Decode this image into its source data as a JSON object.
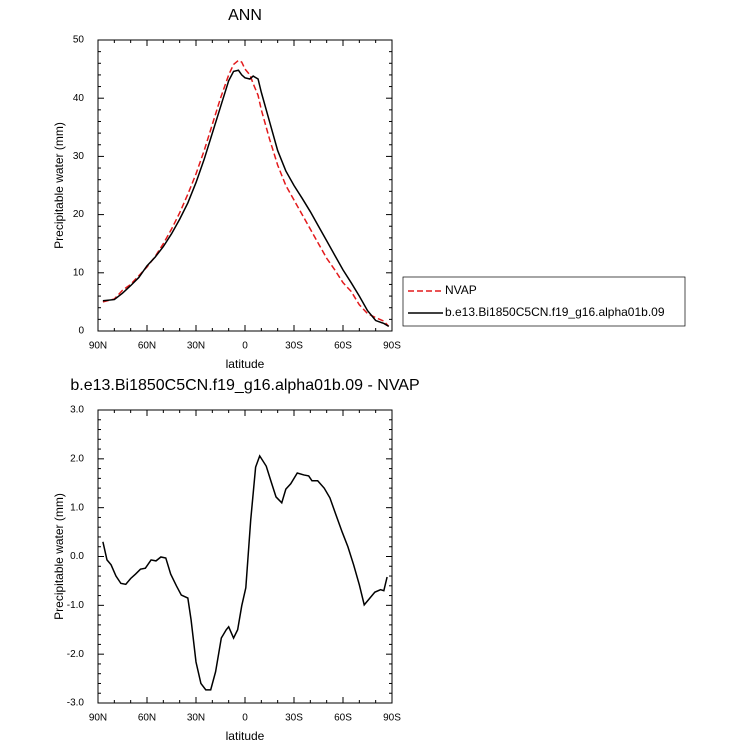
{
  "chart_data": [
    {
      "type": "line",
      "title": "ANN",
      "xlabel": "latitude",
      "ylabel": "Precipitable water (mm)",
      "x": [
        87,
        80,
        75,
        70,
        65,
        60,
        55,
        50,
        45,
        40,
        35,
        30,
        25,
        20,
        15,
        10,
        7,
        4,
        2,
        0,
        -3,
        -5,
        -8,
        -10,
        -15,
        -20,
        -25,
        -30,
        -35,
        -40,
        -45,
        -50,
        -55,
        -60,
        -65,
        -70,
        -75,
        -80,
        -85,
        -88
      ],
      "xlim": [
        90,
        -90
      ],
      "xticks": [
        {
          "value": 90,
          "label": "90N"
        },
        {
          "value": 60,
          "label": "60N"
        },
        {
          "value": 30,
          "label": "30N"
        },
        0,
        {
          "value": -30,
          "label": "30S"
        },
        {
          "value": -60,
          "label": "60S"
        },
        {
          "value": -90,
          "label": "90S"
        }
      ],
      "ylim": [
        0,
        50
      ],
      "yticks": [
        0,
        10,
        20,
        30,
        40,
        50
      ],
      "legend": "outside right",
      "series": [
        {
          "name": "NVAP",
          "color": "#e31a1c",
          "dash": true,
          "values": [
            5,
            5.5,
            7,
            8,
            9.5,
            11,
            12.8,
            15,
            17.5,
            20.3,
            23.5,
            27,
            31,
            35.5,
            40,
            44,
            45.8,
            46.5,
            46.2,
            45,
            44,
            42.5,
            40.5,
            38,
            33,
            28.5,
            25,
            22.5,
            20,
            17.5,
            15,
            12.5,
            10.5,
            8.3,
            6.8,
            4.5,
            3,
            2.3,
            1.7,
            0.8
          ]
        },
        {
          "name": "b.e13.Bi1850C5CN.f19_g16.alpha01b.09",
          "color": "#000000",
          "dash": false,
          "values": [
            5.2,
            5.4,
            6.5,
            7.8,
            9.2,
            11.2,
            12.7,
            14.5,
            16.7,
            19.2,
            22,
            25.5,
            29.5,
            34,
            38.5,
            43,
            44.6,
            44.8,
            44,
            43.5,
            43.3,
            43.8,
            43.3,
            41,
            36,
            31,
            27.5,
            25,
            22.8,
            20.5,
            18,
            15.5,
            13,
            10.5,
            8.3,
            6,
            3.5,
            1.8,
            1.3,
            0.8
          ]
        }
      ]
    },
    {
      "type": "line",
      "title": "b.e13.Bi1850C5CN.f19_g16.alpha01b.09 - NVAP",
      "xlabel": "latitude",
      "ylabel": "Precipitable water (mm)",
      "x": [
        87,
        84.5,
        82,
        79,
        76,
        73,
        70,
        67,
        64,
        61,
        57.5,
        54.5,
        51.5,
        48.5,
        45.5,
        42,
        39,
        35,
        33,
        30,
        27,
        24,
        21,
        18,
        14.5,
        11.5,
        10,
        7,
        4.5,
        2,
        -0.5,
        -3.5,
        -6.5,
        -9,
        -13,
        -16,
        -19,
        -22.5,
        -25,
        -28,
        -32,
        -36,
        -39,
        -41,
        -44.5,
        -48.5,
        -52,
        -55.5,
        -59.5,
        -63,
        -66.5,
        -70,
        -73,
        -76.5,
        -79.5,
        -83,
        -85,
        -87
      ],
      "xlim": [
        90,
        -90
      ],
      "xticks": [
        {
          "value": 90,
          "label": "90N"
        },
        {
          "value": 60,
          "label": "60N"
        },
        {
          "value": 30,
          "label": "30N"
        },
        0,
        {
          "value": -30,
          "label": "30S"
        },
        {
          "value": -60,
          "label": "60S"
        },
        {
          "value": -90,
          "label": "90S"
        }
      ],
      "ylim": [
        -3,
        3
      ],
      "yticks": [
        {
          "value": -3,
          "label": "-3.0"
        },
        {
          "value": -2,
          "label": "-2.0"
        },
        {
          "value": -1,
          "label": "-1.0"
        },
        {
          "value": 0,
          "label": "0.0"
        },
        {
          "value": 1,
          "label": "1.0"
        },
        {
          "value": 2,
          "label": "2.0"
        },
        {
          "value": 3,
          "label": "3.0"
        }
      ],
      "series": [
        {
          "color": "#000000",
          "dash": false,
          "values": [
            0.3,
            -0.07,
            -0.17,
            -0.4,
            -0.55,
            -0.57,
            -0.45,
            -0.36,
            -0.26,
            -0.24,
            -0.07,
            -0.09,
            -0.01,
            -0.03,
            -0.36,
            -0.6,
            -0.79,
            -0.85,
            -1.3,
            -2.16,
            -2.6,
            -2.73,
            -2.73,
            -2.36,
            -1.67,
            -1.5,
            -1.44,
            -1.67,
            -1.5,
            -1.01,
            -0.64,
            0.75,
            1.83,
            2.06,
            1.85,
            1.53,
            1.22,
            1.1,
            1.38,
            1.49,
            1.71,
            1.67,
            1.65,
            1.55,
            1.55,
            1.4,
            1.2,
            0.87,
            0.5,
            0.2,
            -0.17,
            -0.58,
            -0.99,
            -0.85,
            -0.73,
            -0.68,
            -0.7,
            -0.42
          ]
        }
      ]
    }
  ]
}
